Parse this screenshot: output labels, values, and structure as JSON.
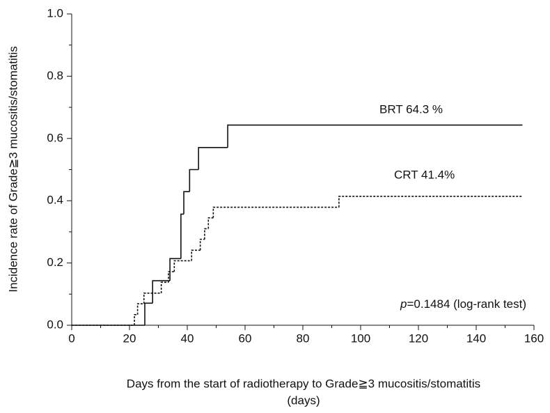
{
  "chart_data": {
    "type": "step",
    "xlabel": "Days from the start of radiotherapy to Grade≧3 mucositis/stomatitis",
    "xlabel2": "(days)",
    "ylabel": "Incidence rate of Grade≧3  mucositis/stomatitis",
    "xlim": [
      0,
      160
    ],
    "xticks": [
      0,
      20,
      40,
      60,
      80,
      100,
      120,
      140,
      160
    ],
    "xminorticks": [
      10,
      30,
      50,
      70,
      90,
      110,
      130,
      150
    ],
    "ylim": [
      0,
      1
    ],
    "yticks": [
      {
        "value": 0,
        "label": "0.0"
      },
      0.2,
      0.4,
      0.6,
      0.8,
      {
        "value": 1,
        "label": "1.0"
      }
    ],
    "yminorticks": [
      0.1,
      0.3,
      0.5,
      0.7,
      0.9
    ],
    "series": [
      {
        "name": "BRT",
        "color": "#111111",
        "dash": "solid",
        "x": [
          0,
          25.3,
          28,
          34,
          37.8,
          38.8,
          40.8,
          43.9,
          54,
          156
        ],
        "values": [
          0,
          0.071,
          0.143,
          0.214,
          0.357,
          0.429,
          0.5,
          0.571,
          0.643,
          0.643
        ]
      },
      {
        "name": "CRT",
        "color": "#111111",
        "dash": "dotted",
        "x": [
          0,
          21.7,
          22.8,
          25,
          31,
          33.5,
          35.5,
          41.5,
          44.5,
          46,
          47.3,
          49,
          92.5,
          156
        ],
        "values": [
          0,
          0.034,
          0.069,
          0.103,
          0.138,
          0.172,
          0.207,
          0.241,
          0.276,
          0.31,
          0.345,
          0.379,
          0.414,
          0.414
        ]
      }
    ],
    "annotations": [
      "BRT 64.3 %",
      "CRT  41.4%"
    ],
    "test_note": {
      "italic": "p",
      "text": "=0.1484 (log-rank test)"
    }
  }
}
